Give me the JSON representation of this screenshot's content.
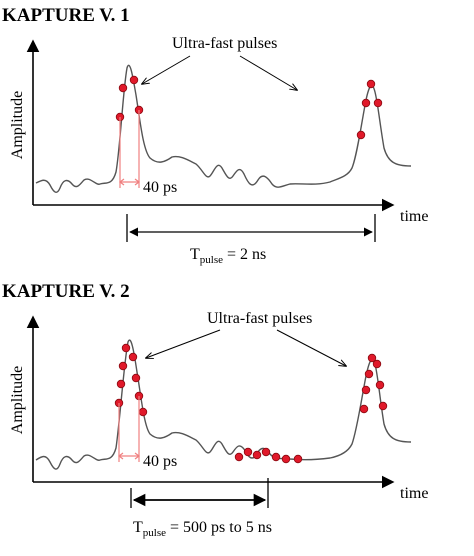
{
  "panel1": {
    "title": "KAPTURE V. 1",
    "annotation": "Ultra-fast pulses",
    "ylabel": "Amplitude",
    "xlabel": "time",
    "sample_spacing": "40 ps",
    "period_prefix": "T",
    "period_sub": "pulse",
    "period_value": " = 2 ns"
  },
  "panel2": {
    "title": "KAPTURE V. 2",
    "annotation": "Ultra-fast pulses",
    "ylabel": "Amplitude",
    "xlabel": "time",
    "sample_spacing": "40 ps",
    "period_prefix": "T",
    "period_sub": "pulse",
    "period_value": " = 500 ps to 5 ns"
  },
  "colors": {
    "sample_dot": "#e0192a",
    "spacing_marker": "#f08080",
    "waveform": "#555555"
  }
}
